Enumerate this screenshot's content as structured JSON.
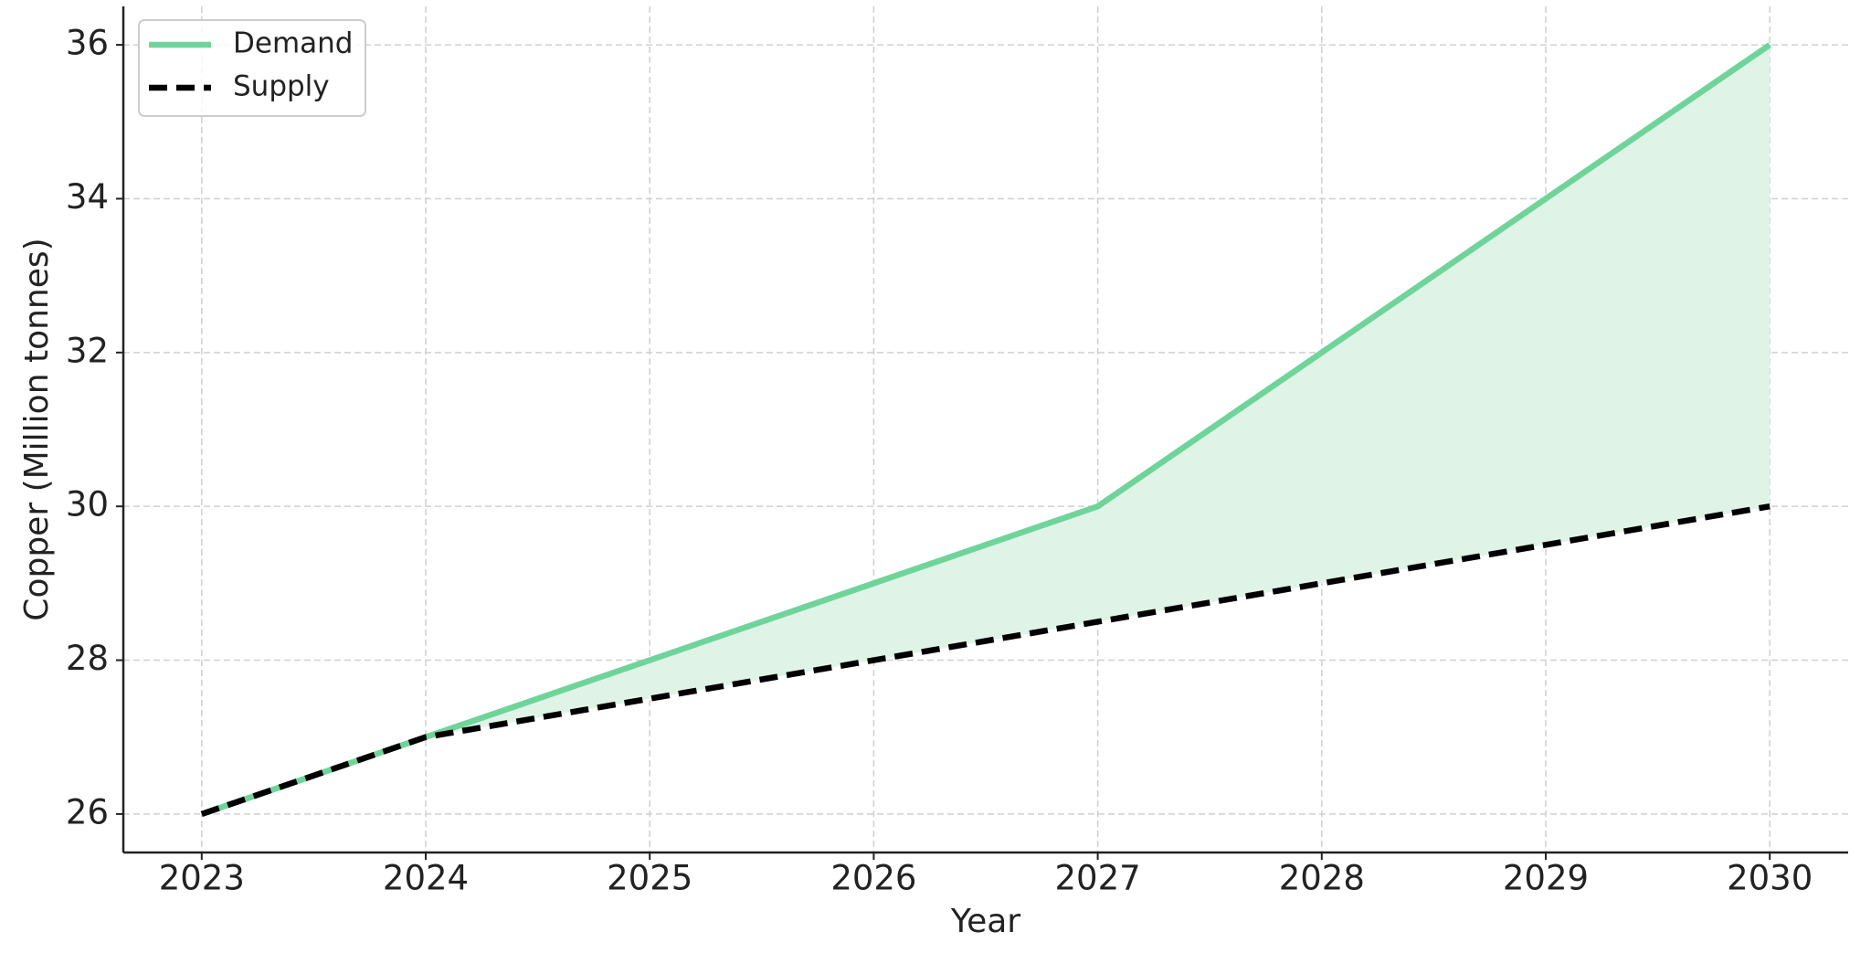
{
  "chart_data": {
    "type": "line",
    "xlabel": "Year",
    "ylabel": "Copper (Million tonnes)",
    "x": [
      2023,
      2024,
      2025,
      2026,
      2027,
      2028,
      2029,
      2030
    ],
    "series": [
      {
        "name": "Demand",
        "color": "#6fd49a",
        "dash": false,
        "values": [
          26,
          27,
          28,
          29,
          30,
          32,
          34,
          36
        ]
      },
      {
        "name": "Supply",
        "color": "#000000",
        "dash": true,
        "values": [
          26,
          27,
          27.5,
          28,
          28.5,
          29,
          29.5,
          30
        ]
      }
    ],
    "fill_between_color": "#dff4e6",
    "xlim": [
      2022.65,
      2030.35
    ],
    "xticks": [
      2023,
      2024,
      2025,
      2026,
      2027,
      2028,
      2029,
      2030
    ],
    "ylim": [
      25.5,
      36.5
    ],
    "yticks": [
      26,
      28,
      30,
      32,
      34,
      36
    ],
    "grid": true,
    "legend": "upper-left"
  }
}
